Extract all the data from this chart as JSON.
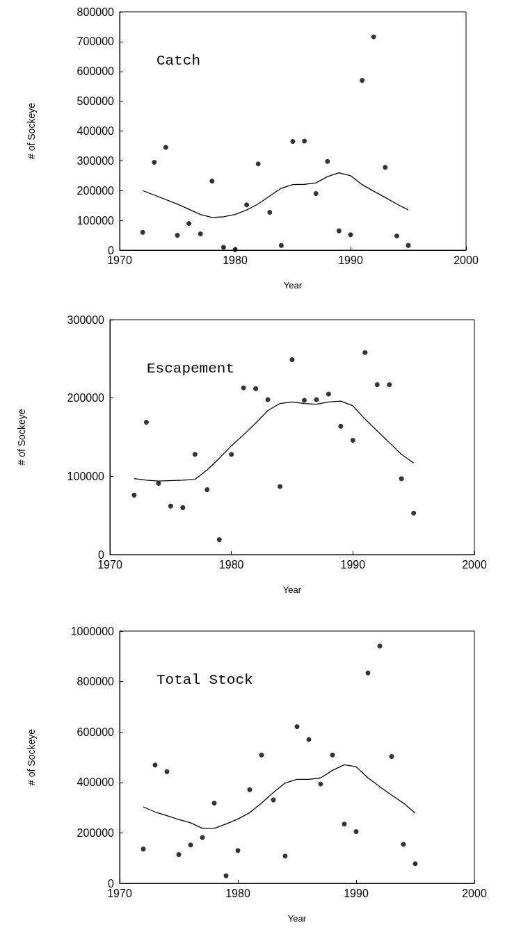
{
  "chart_data": [
    {
      "type": "scatter",
      "title": "Catch",
      "xlabel": "Year",
      "ylabel": "# of Sockeye",
      "xlim": [
        1970,
        2000
      ],
      "xticks": [
        1970,
        1980,
        1990,
        2000
      ],
      "ylim": [
        0,
        800000
      ],
      "yticks": [
        0,
        100000,
        200000,
        300000,
        400000,
        500000,
        600000,
        700000,
        800000
      ],
      "grid": false,
      "series": [
        {
          "marker": "circle",
          "color": "#000000",
          "x": [
            1972,
            1973,
            1974,
            1975,
            1976,
            1977,
            1978,
            1979,
            1980,
            1981,
            1982,
            1983,
            1984,
            1985,
            1986,
            1987,
            1988,
            1989,
            1990,
            1991,
            1992,
            1993,
            1994,
            1995
          ],
          "values": [
            60000,
            295000,
            345000,
            50000,
            90000,
            55000,
            232000,
            10000,
            2000,
            152000,
            290000,
            127000,
            16000,
            365000,
            366000,
            190000,
            298000,
            65000,
            52000,
            570000,
            716000,
            278000,
            48000,
            16000
          ]
        },
        {
          "type": "line",
          "marker": "none",
          "color": "#000000",
          "x": [
            1972,
            1975,
            1977,
            1978,
            1979,
            1980,
            1981,
            1982,
            1983,
            1984,
            1985,
            1986,
            1987,
            1988,
            1989,
            1990,
            1991,
            1992,
            1993,
            1994,
            1995
          ],
          "values": [
            200000,
            155000,
            120000,
            110000,
            112000,
            120000,
            135000,
            155000,
            182000,
            208000,
            220000,
            221000,
            226000,
            247000,
            260000,
            250000,
            220000,
            198000,
            177000,
            155000,
            135000
          ]
        }
      ]
    },
    {
      "type": "scatter",
      "title": "Escapement",
      "xlabel": "Year",
      "ylabel": "# of Sockeye",
      "xlim": [
        1970,
        2000
      ],
      "xticks": [
        1970,
        1980,
        1990,
        2000
      ],
      "ylim": [
        0,
        300000
      ],
      "yticks": [
        0,
        100000,
        200000,
        300000
      ],
      "grid": false,
      "series": [
        {
          "marker": "circle",
          "color": "#000000",
          "x": [
            1972,
            1973,
            1974,
            1975,
            1976,
            1977,
            1978,
            1979,
            1980,
            1981,
            1982,
            1983,
            1984,
            1985,
            1986,
            1987,
            1988,
            1989,
            1990,
            1991,
            1992,
            1993,
            1994,
            1995
          ],
          "values": [
            76000,
            169000,
            91000,
            62000,
            60000,
            128000,
            83000,
            19000,
            128000,
            213000,
            212000,
            198000,
            87000,
            249000,
            197000,
            198000,
            205000,
            164000,
            146000,
            258000,
            217000,
            217000,
            97000,
            53000
          ]
        },
        {
          "type": "line",
          "marker": "none",
          "color": "#000000",
          "x": [
            1972,
            1973,
            1974,
            1976,
            1977,
            1978,
            1979,
            1980,
            1981,
            1982,
            1983,
            1984,
            1985,
            1986,
            1987,
            1988,
            1989,
            1990,
            1991,
            1992,
            1993,
            1994,
            1995
          ],
          "values": [
            97000,
            95000,
            94000,
            95000,
            96000,
            108000,
            123000,
            139000,
            153000,
            168000,
            184000,
            193000,
            195000,
            193000,
            192000,
            195000,
            196000,
            190000,
            173000,
            158000,
            143000,
            128000,
            117000
          ]
        }
      ]
    },
    {
      "type": "scatter",
      "title": "Total Stock",
      "xlabel": "Year",
      "ylabel": "# of Sockeye",
      "xlim": [
        1970,
        2000
      ],
      "xticks": [
        1970,
        1980,
        1990,
        2000
      ],
      "ylim": [
        0,
        1000000
      ],
      "yticks": [
        0,
        200000,
        400000,
        600000,
        800000,
        1000000
      ],
      "grid": false,
      "series": [
        {
          "marker": "circle",
          "color": "#000000",
          "x": [
            1972,
            1973,
            1974,
            1975,
            1976,
            1977,
            1978,
            1979,
            1980,
            1981,
            1982,
            1983,
            1984,
            1985,
            1986,
            1987,
            1988,
            1989,
            1990,
            1991,
            1992,
            1993,
            1994,
            1995
          ],
          "values": [
            136000,
            469000,
            443000,
            114000,
            152000,
            182000,
            318000,
            30000,
            130000,
            371000,
            509000,
            331000,
            108000,
            621000,
            570000,
            394000,
            509000,
            235000,
            205000,
            834000,
            941000,
            503000,
            155000,
            78000
          ]
        },
        {
          "type": "line",
          "marker": "none",
          "color": "#000000",
          "x": [
            1972,
            1973,
            1974,
            1975,
            1976,
            1977,
            1978,
            1979,
            1980,
            1981,
            1982,
            1983,
            1984,
            1985,
            1986,
            1987,
            1988,
            1989,
            1990,
            1991,
            1992,
            1993,
            1994,
            1995
          ],
          "values": [
            303000,
            283000,
            268000,
            253000,
            240000,
            218000,
            218000,
            235000,
            255000,
            280000,
            318000,
            360000,
            398000,
            412000,
            412000,
            418000,
            448000,
            470000,
            462000,
            418000,
            383000,
            350000,
            318000,
            278000
          ]
        }
      ]
    }
  ]
}
